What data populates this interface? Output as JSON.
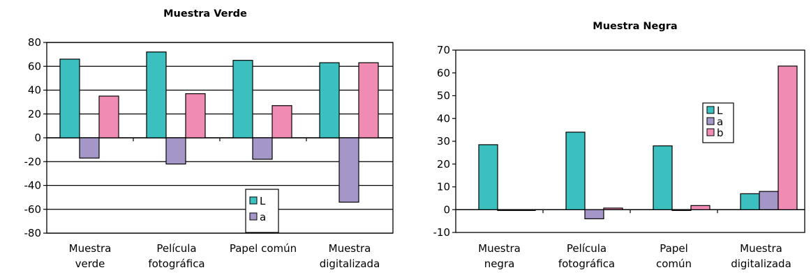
{
  "colors": {
    "L": "#3cbfbf",
    "a": "#a596c8",
    "b": "#f08cb4",
    "stroke": "#000000"
  },
  "chart_data": [
    {
      "type": "bar",
      "title": "Muestra Verde",
      "categories": [
        [
          "Muestra",
          "verde"
        ],
        [
          "Película",
          "fotográfica"
        ],
        [
          "Papel común"
        ],
        [
          "Muestra",
          "digitalizada"
        ]
      ],
      "series": [
        {
          "name": "L",
          "values": [
            66,
            72,
            65,
            63
          ]
        },
        {
          "name": "a",
          "values": [
            -17,
            -22,
            -18,
            -54
          ]
        },
        {
          "name": null,
          "values": [
            35,
            37,
            27,
            63
          ]
        }
      ],
      "ylim": [
        -80,
        80
      ],
      "yticks": [
        80,
        60,
        40,
        20,
        0,
        -20,
        -40,
        -60,
        -80
      ],
      "grid": true,
      "legend": {
        "position": "bottom-right",
        "entries": [
          "L",
          "a"
        ]
      }
    },
    {
      "type": "bar",
      "title": "Muestra Negra",
      "categories": [
        [
          "Muestra",
          "negra"
        ],
        [
          "Película",
          "fotográfica"
        ],
        [
          "Papel",
          "común"
        ],
        [
          "Muestra",
          "digitalizada"
        ]
      ],
      "series": [
        {
          "name": "L",
          "values": [
            28.5,
            34,
            28,
            7
          ]
        },
        {
          "name": "a",
          "values": [
            0,
            -4,
            0,
            8
          ]
        },
        {
          "name": "b",
          "values": [
            0,
            0.7,
            1.8,
            63
          ]
        }
      ],
      "ylim": [
        -10,
        70
      ],
      "yticks": [
        70,
        60,
        50,
        40,
        30,
        20,
        10,
        0,
        -10
      ],
      "grid": false,
      "legend": {
        "position": "center-right",
        "entries": [
          "L",
          "a",
          "b"
        ]
      }
    }
  ]
}
